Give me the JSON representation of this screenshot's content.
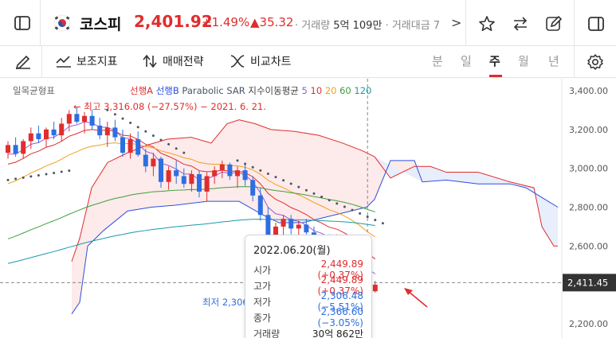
{
  "header": {
    "name": "코스피",
    "price": "2,401.92",
    "change_pct": "+1.49%",
    "change_abs": "▲35.32",
    "meta_text": "· 거래량 ",
    "volume": "5억 109만",
    "meta_text2": " · 거래대금 7",
    "chevron": ">"
  },
  "toolbar": {
    "aux_label": "보조지표",
    "trade_label": "매매전략",
    "compare_label": "비교차트",
    "periods": [
      "분",
      "일",
      "주",
      "월",
      "년"
    ],
    "active_period": "주"
  },
  "legend": {
    "ichimoku": "일목균형표",
    "span_a": "선행A",
    "span_b": "선행B",
    "psar": "Parabolic SAR",
    "ema": "지수이동평균",
    "ema5": "5",
    "ema10": "10",
    "ema20": "20",
    "ema60": "60",
    "ema120": "120"
  },
  "annotations": {
    "high": "← 최고 3,316.08 (−27.57%) − 2021. 6. 21.",
    "low": "최저 2,306"
  },
  "price_axis": {
    "ticks": [
      "3,400.00",
      "3,200.00",
      "3,000.00",
      "2,800.00",
      "2,600.00",
      "2,200.00"
    ],
    "current_label": "2,411.45"
  },
  "tooltip": {
    "date": "2022.06.20(월)",
    "rows": [
      {
        "k": "시가",
        "v": "2,449.89 (+0.37%)",
        "c": "red"
      },
      {
        "k": "고가",
        "v": "2,449.89 (+0.37%)",
        "c": "red"
      },
      {
        "k": "저가",
        "v": "2,306.48 (−5.51%)",
        "c": "blue"
      },
      {
        "k": "종가",
        "v": "2,366.60 (−3.05%)",
        "c": "blue"
      },
      {
        "k": "거래량",
        "v": "30억 862만",
        "c": ""
      }
    ]
  },
  "chart_data": {
    "type": "candlestick",
    "colors": {
      "up": "#e12d2d",
      "down": "#2d6fe1",
      "cloud": "#fde8e8",
      "cloud_down": "#e6ecfb",
      "psar": "#4a5568"
    },
    "ylim": [
      2150,
      3450
    ],
    "candles": [
      [
        3080,
        3140,
        3050,
        3120
      ],
      [
        3120,
        3160,
        3060,
        3075
      ],
      [
        3075,
        3150,
        3050,
        3140
      ],
      [
        3140,
        3210,
        3100,
        3180
      ],
      [
        3180,
        3220,
        3130,
        3150
      ],
      [
        3150,
        3210,
        3110,
        3200
      ],
      [
        3200,
        3240,
        3150,
        3170
      ],
      [
        3170,
        3260,
        3140,
        3230
      ],
      [
        3230,
        3300,
        3190,
        3280
      ],
      [
        3280,
        3316,
        3230,
        3240
      ],
      [
        3240,
        3290,
        3180,
        3270
      ],
      [
        3270,
        3300,
        3200,
        3220
      ],
      [
        3220,
        3260,
        3150,
        3170
      ],
      [
        3170,
        3240,
        3110,
        3210
      ],
      [
        3210,
        3250,
        3140,
        3160
      ],
      [
        3160,
        3200,
        3060,
        3080
      ],
      [
        3080,
        3180,
        3050,
        3150
      ],
      [
        3150,
        3190,
        3060,
        3070
      ],
      [
        3070,
        3100,
        2980,
        3010
      ],
      [
        3010,
        3080,
        2960,
        3050
      ],
      [
        3050,
        3060,
        2900,
        2930
      ],
      [
        2930,
        3010,
        2890,
        2990
      ],
      [
        2990,
        3040,
        2920,
        2960
      ],
      [
        2960,
        3000,
        2900,
        2920
      ],
      [
        2920,
        2990,
        2880,
        2970
      ],
      [
        2970,
        2990,
        2850,
        2880
      ],
      [
        2880,
        2980,
        2830,
        2960
      ],
      [
        2960,
        3010,
        2920,
        2990
      ],
      [
        2990,
        3040,
        2950,
        3020
      ],
      [
        3020,
        3030,
        2940,
        2960
      ],
      [
        2960,
        3010,
        2900,
        2990
      ],
      [
        2990,
        3020,
        2910,
        2940
      ],
      [
        2940,
        2960,
        2830,
        2860
      ],
      [
        2860,
        2900,
        2730,
        2760
      ],
      [
        2760,
        2800,
        2600,
        2650
      ],
      [
        2650,
        2720,
        2590,
        2700
      ],
      [
        2700,
        2760,
        2650,
        2740
      ],
      [
        2740,
        2760,
        2660,
        2690
      ],
      [
        2690,
        2730,
        2640,
        2710
      ],
      [
        2710,
        2740,
        2660,
        2670
      ],
      [
        2670,
        2700,
        2590,
        2620
      ],
      [
        2620,
        2650,
        2570,
        2640
      ],
      [
        2640,
        2660,
        2580,
        2600
      ],
      [
        2600,
        2660,
        2560,
        2640
      ],
      [
        2640,
        2650,
        2560,
        2580
      ],
      [
        2580,
        2600,
        2500,
        2520
      ],
      [
        2520,
        2560,
        2440,
        2450
      ],
      [
        2450,
        2450,
        2306,
        2367
      ],
      [
        2367,
        2420,
        2360,
        2401
      ]
    ]
  }
}
